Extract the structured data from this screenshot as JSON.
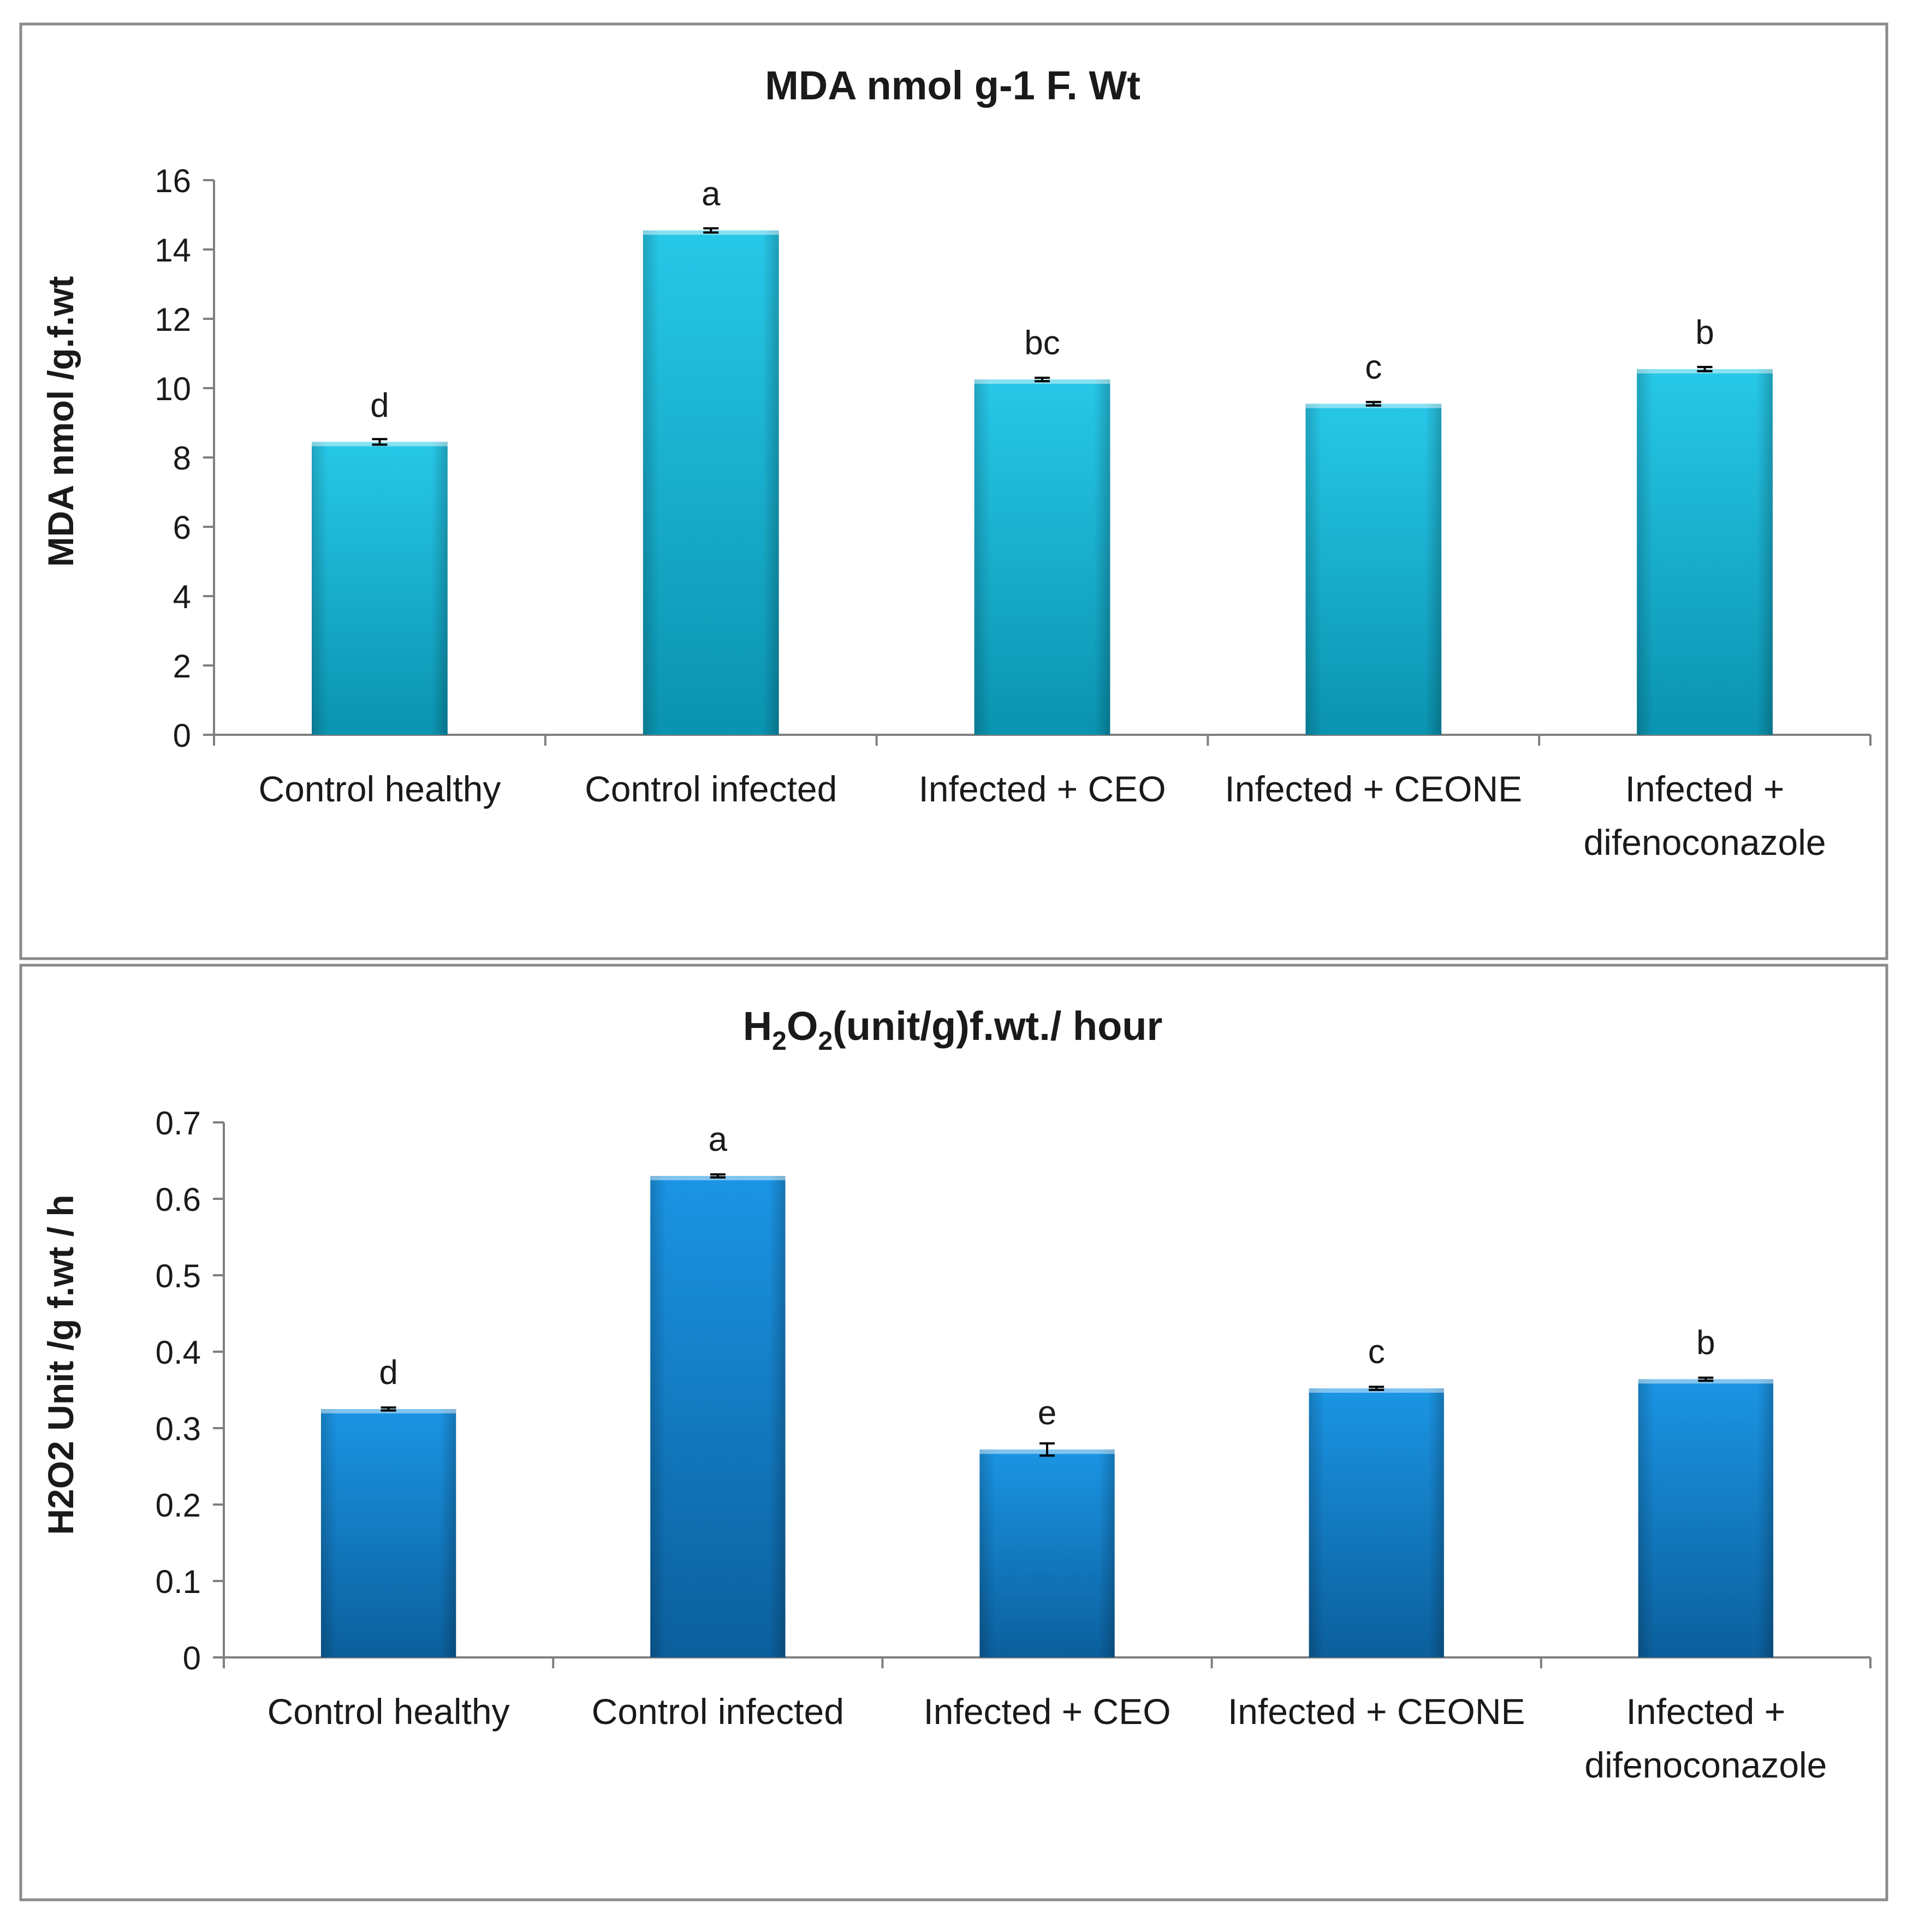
{
  "chart_data": [
    {
      "type": "bar",
      "title": "MDA nmol g-1 F. Wt",
      "xlabel": "",
      "ylabel": "MDA nmol /g.f.wt",
      "ylim": [
        0,
        16
      ],
      "yticks": [
        "0",
        "2",
        "4",
        "6",
        "8",
        "10",
        "12",
        "14",
        "16"
      ],
      "categories": [
        [
          "Control healthy"
        ],
        [
          "Control infected"
        ],
        [
          "Infected + CEO"
        ],
        [
          "Infected + CEONE"
        ],
        [
          "Infected +",
          "difenoconazole"
        ]
      ],
      "values": [
        8.45,
        14.55,
        10.25,
        9.55,
        10.55
      ],
      "errors": [
        0.08,
        0.06,
        0.05,
        0.05,
        0.06
      ],
      "significance_letters": [
        "d",
        "a",
        "bc",
        "c",
        "b"
      ],
      "bar_color_top": "#27c8e8",
      "bar_color_bottom": "#0a93b0"
    },
    {
      "type": "bar",
      "title": "H2O2(unit/g)f.wt./ hour",
      "title_parts": {
        "a": "H",
        "b": "2",
        "c": "O",
        "d": "2",
        "e": "(unit/g)f.wt./ hour"
      },
      "xlabel": "",
      "ylabel": "H2O2 Unit /g f.wt / h",
      "ylim": [
        0,
        0.7
      ],
      "yticks": [
        "0",
        "0.1",
        "0.2",
        "0.3",
        "0.4",
        "0.5",
        "0.6",
        "0.7"
      ],
      "categories": [
        [
          "Control healthy"
        ],
        [
          "Control infected"
        ],
        [
          "Infected + CEO"
        ],
        [
          "Infected + CEONE"
        ],
        [
          "Infected +",
          "difenoconazole"
        ]
      ],
      "values": [
        0.325,
        0.63,
        0.272,
        0.352,
        0.364
      ],
      "errors": [
        0.002,
        0.002,
        0.008,
        0.002,
        0.002
      ],
      "significance_letters": [
        "d",
        "a",
        "e",
        "c",
        "b"
      ],
      "bar_color_top": "#1b95e4",
      "bar_color_bottom": "#0b5f9c"
    }
  ]
}
